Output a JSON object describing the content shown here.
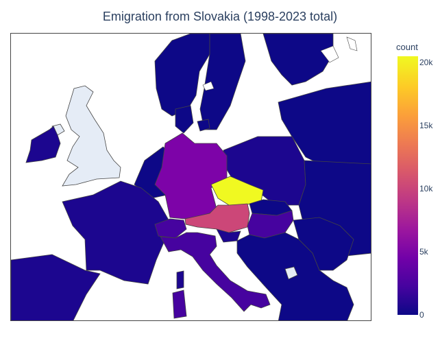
{
  "title": "Emigration from Slovakia (1998-2023 total)",
  "colorbar": {
    "title": "count",
    "ticks": [
      "0",
      "5k",
      "10k",
      "15k",
      "20k"
    ],
    "min": 0,
    "max": 20500,
    "colorscale": "plasma"
  },
  "colors": {
    "low": "#0d0887",
    "low2": "#1c068f",
    "mid_low": "#46039f",
    "purple": "#7d03a8",
    "magenta": "#a51f8f",
    "coral": "#d8576b",
    "pink_coral": "#cc4778",
    "high": "#f0f921",
    "no_data": "#e5ecf6",
    "border": "#444444"
  },
  "chart_data": {
    "type": "choropleth",
    "title": "Emigration from Slovakia (1998-2023 total)",
    "color_label": "count",
    "values": {
      "Czechia": 20500,
      "Austria": 9000,
      "Germany": 6500,
      "Switzerland": 3500,
      "Hungary": 2600,
      "Italy": 2000,
      "France": 900,
      "United Kingdom": null,
      "Ireland": 300,
      "Poland": 400,
      "Slovenia": 700,
      "Netherlands": 500,
      "Belgium": 400,
      "Denmark": 200,
      "Spain": 300,
      "Norway": 300,
      "Sweden": 200,
      "Croatia": 300,
      "Ukraine": 100,
      "Romania": 100,
      "Serbia": 100,
      "Kosovo": null
    }
  }
}
